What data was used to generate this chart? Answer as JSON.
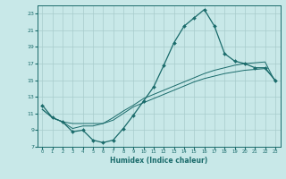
{
  "xlabel": "Humidex (Indice chaleur)",
  "bg_color": "#c8e8e8",
  "grid_color": "#a8cccc",
  "line_color": "#1a6b6b",
  "xlim": [
    -0.5,
    23.5
  ],
  "ylim": [
    7,
    24
  ],
  "yticks": [
    7,
    9,
    11,
    13,
    15,
    17,
    19,
    21,
    23
  ],
  "xticks": [
    0,
    1,
    2,
    3,
    4,
    5,
    6,
    7,
    8,
    9,
    10,
    11,
    12,
    13,
    14,
    15,
    16,
    17,
    18,
    19,
    20,
    21,
    22,
    23
  ],
  "line1_x": [
    0,
    1,
    2,
    3,
    4,
    5,
    6,
    7,
    8,
    9,
    10,
    11,
    12,
    13,
    14,
    15,
    16,
    17,
    18,
    19,
    20,
    21,
    22,
    23
  ],
  "line1_y": [
    12.0,
    10.5,
    10.0,
    8.8,
    9.0,
    7.8,
    7.5,
    7.8,
    9.2,
    10.8,
    12.5,
    14.2,
    16.8,
    19.5,
    21.5,
    22.5,
    23.5,
    21.5,
    18.2,
    17.3,
    17.0,
    16.5,
    16.5,
    15.0
  ],
  "line2_x": [
    0,
    1,
    2,
    3,
    4,
    5,
    6,
    7,
    8,
    9,
    10,
    11,
    12,
    13,
    14,
    15,
    16,
    17,
    18,
    19,
    20,
    21,
    22,
    23
  ],
  "line2_y": [
    11.5,
    10.5,
    10.0,
    9.8,
    9.8,
    9.8,
    9.8,
    10.2,
    11.0,
    11.8,
    12.3,
    12.8,
    13.3,
    13.8,
    14.3,
    14.8,
    15.2,
    15.5,
    15.8,
    16.0,
    16.2,
    16.3,
    16.4,
    15.0
  ],
  "line3_x": [
    0,
    1,
    2,
    3,
    4,
    5,
    6,
    7,
    8,
    9,
    10,
    11,
    12,
    13,
    14,
    15,
    16,
    17,
    18,
    19,
    20,
    21,
    22,
    23
  ],
  "line3_y": [
    11.5,
    10.5,
    10.0,
    9.2,
    9.5,
    9.5,
    9.8,
    10.5,
    11.3,
    12.0,
    12.8,
    13.3,
    13.8,
    14.3,
    14.8,
    15.3,
    15.8,
    16.2,
    16.5,
    16.8,
    17.0,
    17.1,
    17.2,
    14.8
  ]
}
